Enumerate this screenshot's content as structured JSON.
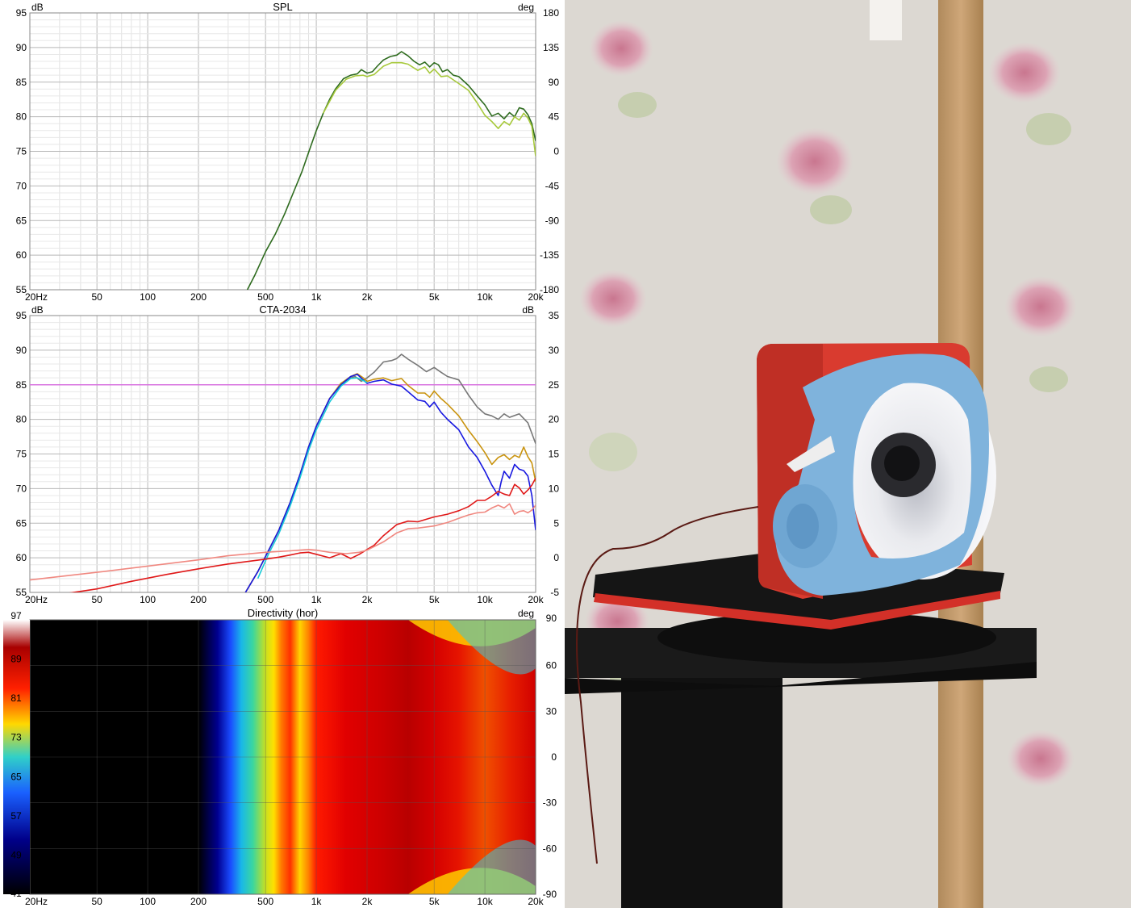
{
  "x_ticks": [
    "20Hz",
    "50",
    "100",
    "200",
    "500",
    "1k",
    "2k",
    "5k",
    "10k",
    "20k"
  ],
  "chart_data": [
    {
      "type": "line",
      "title": "SPL",
      "ylabel": "dB",
      "y2label": "deg",
      "xscale": "log",
      "xlim": [
        20,
        20000
      ],
      "ylim": [
        55,
        95
      ],
      "y2lim": [
        -180,
        180
      ],
      "yticks": [
        "95",
        "90",
        "85",
        "80",
        "75",
        "70",
        "65",
        "60",
        "55"
      ],
      "y2ticks": [
        "180",
        "135",
        "90",
        "45",
        "0",
        "-45",
        "-90",
        "-135",
        "-180"
      ],
      "grid": true,
      "series": [
        {
          "color": "#2e6b1e",
          "x": [
            390,
            430,
            500,
            570,
            650,
            730,
            820,
            920,
            1000,
            1100,
            1200,
            1300,
            1450,
            1600,
            1750,
            1850,
            2000,
            2150,
            2300,
            2500,
            2750,
            3000,
            3200,
            3500,
            3800,
            4100,
            4400,
            4700,
            5000,
            5300,
            5600,
            6000,
            6500,
            7000,
            8000,
            9000,
            10000,
            11000,
            12000,
            13000,
            14000,
            15000,
            16000,
            17000,
            18000,
            19000,
            20000
          ],
          "y": [
            55,
            57,
            60.5,
            63,
            66,
            69,
            72,
            75.5,
            78,
            80.5,
            82.5,
            84,
            85.5,
            86,
            86.2,
            86.8,
            86.3,
            86.5,
            87.3,
            88.2,
            88.7,
            88.9,
            89.4,
            88.8,
            88,
            87.5,
            87.9,
            87.2,
            87.8,
            87.5,
            86.5,
            86.8,
            86,
            85.8,
            84.5,
            83,
            81.7,
            80.1,
            80.5,
            79.7,
            80.6,
            80,
            81.3,
            81.1,
            80.3,
            79,
            76.5
          ]
        },
        {
          "color": "#a7c93b",
          "x": [
            1100,
            1300,
            1500,
            1700,
            1900,
            2000,
            2200,
            2500,
            2800,
            3200,
            3500,
            4000,
            4400,
            4700,
            5000,
            5500,
            6000,
            7000,
            8000,
            9000,
            10000,
            11000,
            12000,
            13000,
            14000,
            15000,
            16000,
            17000,
            18000,
            19000,
            20000
          ],
          "y": [
            80.5,
            83.8,
            85.4,
            85.9,
            86,
            85.8,
            86.1,
            87.3,
            87.8,
            87.8,
            87.6,
            86.7,
            87.2,
            86.3,
            86.9,
            85.8,
            85.9,
            84.8,
            83.8,
            82,
            80.2,
            79.3,
            78.3,
            79.3,
            78.8,
            80,
            79.5,
            80.5,
            79.8,
            78.6,
            74.3
          ]
        }
      ]
    },
    {
      "type": "line",
      "title": "CTA-2034",
      "ylabel": "dB",
      "y2label": "dB",
      "xscale": "log",
      "xlim": [
        20,
        20000
      ],
      "ylim": [
        55,
        95
      ],
      "y2lim": [
        -5,
        35
      ],
      "yticks": [
        "95",
        "90",
        "85",
        "80",
        "75",
        "70",
        "65",
        "60",
        "55"
      ],
      "y2ticks": [
        "35",
        "30",
        "25",
        "20",
        "15",
        "10",
        "5",
        "0",
        "-5"
      ],
      "grid": true,
      "hline": {
        "y": 85,
        "color": "#d874e0"
      },
      "series": [
        {
          "color": "#777777",
          "x": [
            380,
            450,
            520,
            600,
            700,
            800,
            900,
            1000,
            1200,
            1400,
            1600,
            1700,
            1850,
            2000,
            2200,
            2500,
            2800,
            3000,
            3200,
            3500,
            4000,
            4500,
            5000,
            5500,
            6000,
            7000,
            8000,
            9000,
            10000,
            11000,
            12000,
            13000,
            14000,
            16000,
            18000,
            20000
          ],
          "y": [
            55,
            58,
            61,
            64,
            68,
            72,
            76,
            79,
            83,
            85.2,
            86,
            86.2,
            85.5,
            86,
            86.8,
            88.3,
            88.5,
            88.8,
            89.4,
            88.7,
            87.8,
            86.9,
            87.5,
            86.8,
            86.2,
            85.7,
            83.5,
            81.8,
            80.8,
            80.5,
            80,
            80.8,
            80.3,
            80.8,
            79.5,
            76.5
          ]
        },
        {
          "color": "#c9930e",
          "x": [
            380,
            450,
            520,
            600,
            700,
            800,
            900,
            1000,
            1200,
            1400,
            1600,
            1750,
            1900,
            2000,
            2200,
            2500,
            2800,
            3200,
            3500,
            4000,
            4400,
            4700,
            5000,
            5500,
            6000,
            7000,
            8000,
            9000,
            10000,
            11000,
            12000,
            13000,
            14000,
            15000,
            16000,
            17000,
            18000,
            19000,
            20000
          ],
          "y": [
            55,
            58,
            61,
            64,
            68,
            72,
            76,
            79,
            83,
            85.2,
            86.2,
            86.6,
            86,
            85.5,
            85.8,
            86,
            85.6,
            85.9,
            84.9,
            83.8,
            83.8,
            83.2,
            84.1,
            83,
            82.2,
            80.5,
            78.4,
            76.8,
            75.2,
            73.5,
            74.5,
            74.9,
            74.2,
            74.8,
            74.5,
            76,
            74.6,
            73.7,
            71
          ]
        },
        {
          "color": "#1818e0",
          "x": [
            380,
            450,
            520,
            600,
            700,
            800,
            900,
            1000,
            1200,
            1400,
            1600,
            1750,
            1900,
            2000,
            2200,
            2500,
            2800,
            3200,
            3500,
            4000,
            4400,
            4700,
            5000,
            5500,
            6000,
            7000,
            8000,
            9000,
            10000,
            11000,
            12000,
            12500,
            13000,
            14000,
            15000,
            16000,
            17000,
            18000,
            19000,
            20000
          ],
          "y": [
            55,
            58,
            61,
            64,
            68,
            72,
            76,
            79,
            83,
            85,
            86.2,
            86.5,
            85.7,
            85.2,
            85.5,
            85.7,
            85.1,
            84.8,
            84,
            82.8,
            82.6,
            81.8,
            82.5,
            81,
            80,
            78.5,
            76,
            74.5,
            72.5,
            70.5,
            69,
            71,
            72.5,
            71.5,
            73.5,
            72.8,
            72.6,
            71.8,
            69,
            64
          ]
        },
        {
          "color": "#17cbd8",
          "x": [
            450,
            520,
            600,
            700,
            800,
            900,
            1000,
            1200,
            1400,
            1600,
            1750,
            1900,
            2000
          ],
          "y": [
            57,
            60.5,
            63.5,
            67.5,
            71.5,
            75.5,
            78.5,
            82.5,
            84.8,
            85.9,
            86,
            85.6,
            85.3
          ]
        },
        {
          "color": "#e01818",
          "x": [
            20,
            30,
            50,
            80,
            130,
            200,
            300,
            400,
            500,
            600,
            700,
            800,
            900,
            1000,
            1200,
            1400,
            1600,
            1800,
            2000,
            2200,
            2500,
            3000,
            3500,
            4000,
            5000,
            6000,
            7000,
            8000,
            9000,
            10000,
            11000,
            12000,
            13000,
            14000,
            15000,
            16000,
            17000,
            18000,
            19000,
            20000
          ],
          "y": [
            54,
            54.7,
            55.5,
            56.6,
            57.6,
            58.4,
            59.1,
            59.5,
            59.8,
            60.1,
            60.4,
            60.7,
            60.8,
            60.5,
            60,
            60.6,
            59.9,
            60.5,
            61.2,
            61.8,
            63.2,
            64.8,
            65.3,
            65.2,
            65.9,
            66.3,
            66.8,
            67.4,
            68.3,
            68.3,
            68.9,
            69.6,
            69.2,
            69,
            70.6,
            70.1,
            69.2,
            69.8,
            70.5,
            71.5
          ]
        },
        {
          "color": "#f08880",
          "x": [
            20,
            50,
            100,
            200,
            300,
            500,
            700,
            900,
            1000,
            1200,
            1500,
            1800,
            2000,
            2500,
            3000,
            3500,
            4000,
            5000,
            6000,
            7000,
            8000,
            9000,
            10000,
            11000,
            12000,
            13000,
            14000,
            15000,
            16000,
            17000,
            18000,
            19000,
            20000
          ],
          "y": [
            56.8,
            57.9,
            58.8,
            59.7,
            60.3,
            60.8,
            61,
            61.2,
            61.1,
            60.8,
            60.6,
            60.8,
            61.1,
            62.3,
            63.6,
            64.2,
            64.3,
            64.6,
            65.1,
            65.7,
            66.2,
            66.5,
            66.6,
            67.2,
            67.6,
            67.2,
            67.8,
            66.3,
            66.7,
            66.8,
            66.5,
            66.9,
            67.6
          ]
        }
      ]
    },
    {
      "type": "heatmap",
      "title": "Directivity (hor)",
      "ylabel": "deg",
      "xscale": "log",
      "xlim": [
        20,
        20000
      ],
      "ylim": [
        -90,
        90
      ],
      "yticks": [
        "90",
        "60",
        "30",
        "0",
        "-30",
        "-60",
        "-90"
      ],
      "colorbar_ticks": [
        "97",
        "89",
        "81",
        "73",
        "65",
        "57",
        "49",
        "41"
      ],
      "colorbar_range": [
        41,
        97
      ]
    }
  ],
  "photo": {
    "wall": "#dcd8d2",
    "speaker_box": "#d93b2f",
    "towel": "#7fb3dc",
    "horn": "#f3f3f5"
  }
}
